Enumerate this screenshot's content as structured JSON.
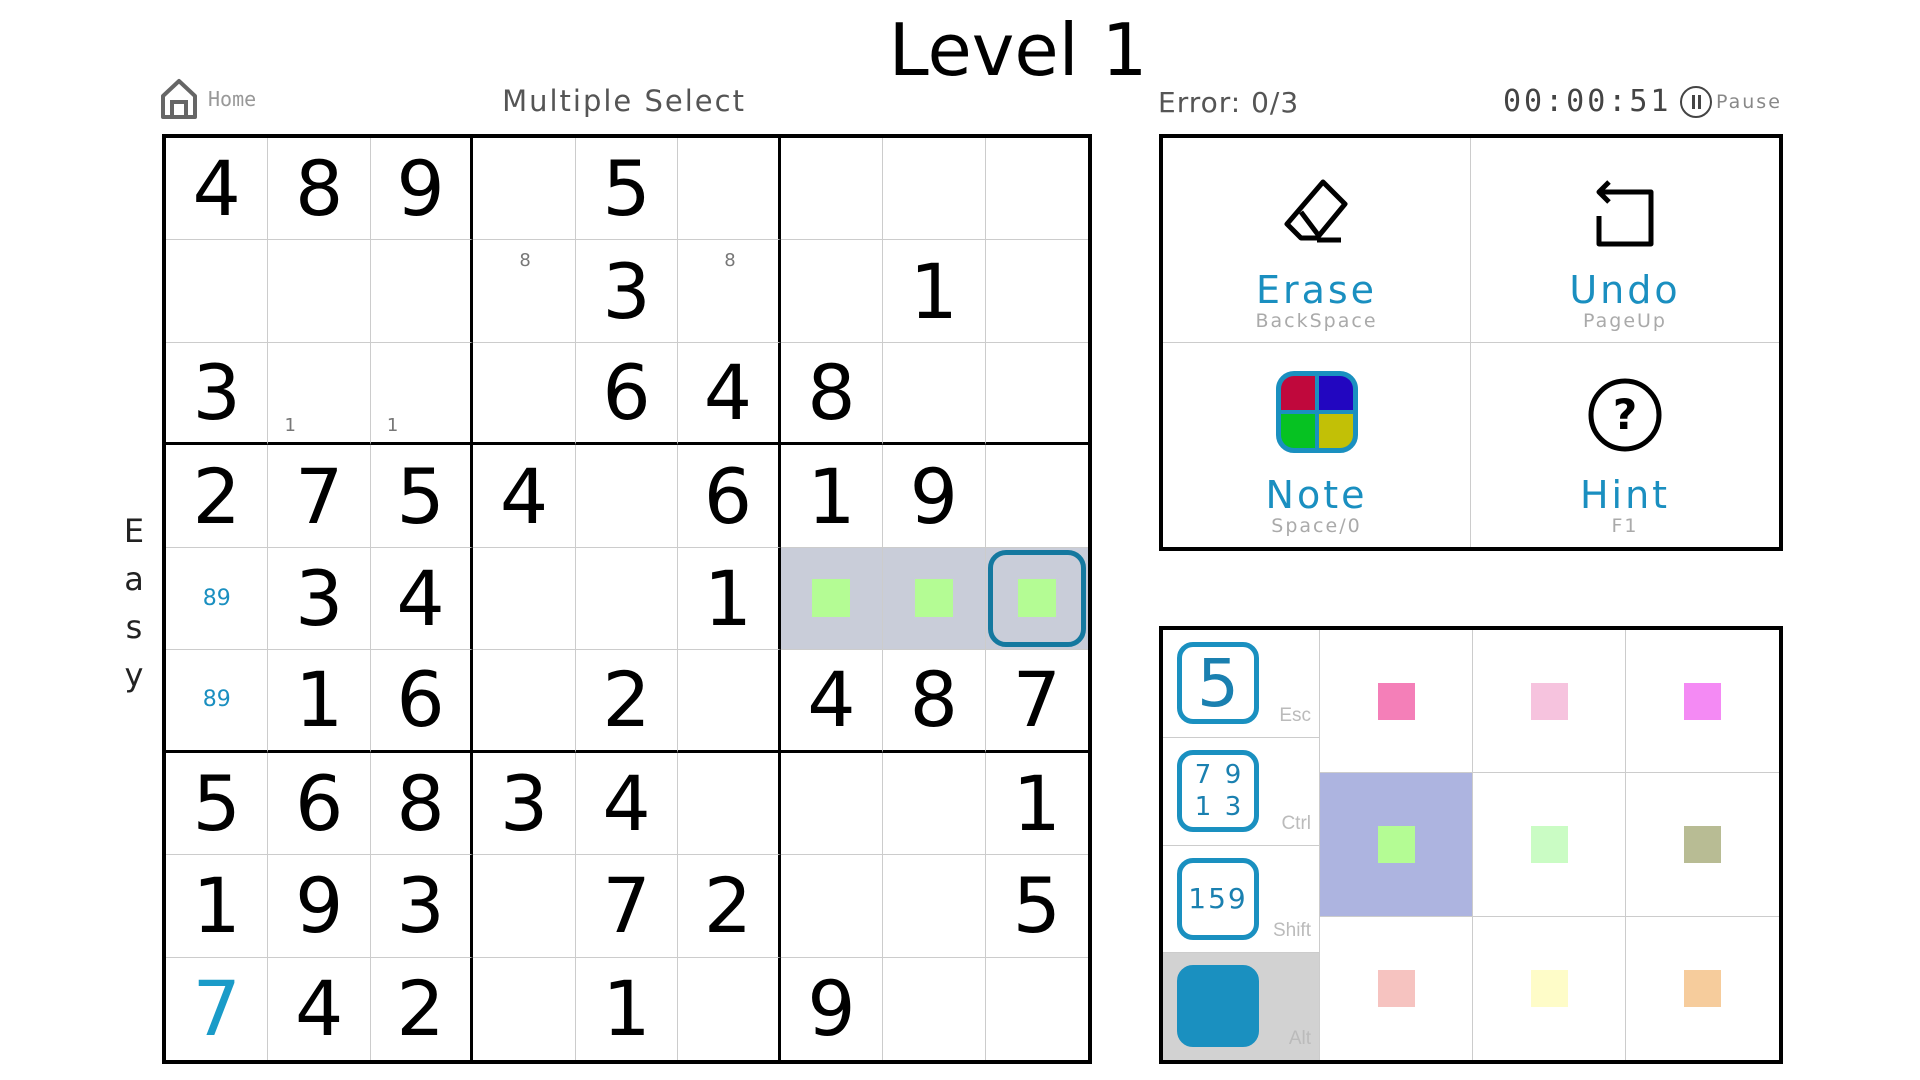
{
  "title": "Level 1",
  "home_label": "Home",
  "mode_label": "Multiple Select",
  "difficulty": "Easy",
  "error": "Error: 0/3",
  "timer": "00:00:51",
  "pause_label": "Pause",
  "colors": {
    "accent": "#1a90c0",
    "selection_border": "#14789f",
    "highlight": "#c9cdd9",
    "cell_color_fill": "#b4fc94"
  },
  "board": [
    [
      {
        "v": "4"
      },
      {
        "v": "8"
      },
      {
        "v": "9"
      },
      {},
      {
        "v": "5"
      },
      {},
      {},
      {},
      {}
    ],
    [
      {},
      {},
      {},
      {
        "note": "8",
        "pos": "tl"
      },
      {
        "v": "3"
      },
      {
        "note": "8",
        "pos": "tl"
      },
      {},
      {
        "v": "1"
      },
      {}
    ],
    [
      {
        "v": "3"
      },
      {
        "note": "1",
        "pos": "bl"
      },
      {
        "note": "1",
        "pos": "bl"
      },
      {},
      {
        "v": "6"
      },
      {
        "v": "4"
      },
      {
        "v": "8"
      },
      {},
      {}
    ],
    [
      {
        "v": "2"
      },
      {
        "v": "7"
      },
      {
        "v": "5"
      },
      {
        "v": "4"
      },
      {},
      {
        "v": "6"
      },
      {
        "v": "1"
      },
      {
        "v": "9"
      },
      {}
    ],
    [
      {
        "note": "89",
        "pos": "c"
      },
      {
        "v": "3"
      },
      {
        "v": "4"
      },
      {},
      {},
      {
        "v": "1"
      },
      {
        "color": "#b4fc94",
        "hl": true
      },
      {
        "color": "#b4fc94",
        "hl": true
      },
      {
        "color": "#b4fc94",
        "hl": true,
        "selected": true
      }
    ],
    [
      {
        "note": "89",
        "pos": "c"
      },
      {
        "v": "1"
      },
      {
        "v": "6"
      },
      {},
      {
        "v": "2"
      },
      {},
      {
        "v": "4"
      },
      {
        "v": "8"
      },
      {
        "v": "7"
      }
    ],
    [
      {
        "v": "5"
      },
      {
        "v": "6"
      },
      {
        "v": "8"
      },
      {
        "v": "3"
      },
      {
        "v": "4"
      },
      {},
      {},
      {},
      {
        "v": "1"
      }
    ],
    [
      {
        "v": "1"
      },
      {
        "v": "9"
      },
      {
        "v": "3"
      },
      {},
      {
        "v": "7"
      },
      {
        "v": "2"
      },
      {},
      {},
      {
        "v": "5"
      }
    ],
    [
      {
        "v": "7",
        "user": true
      },
      {
        "v": "4"
      },
      {
        "v": "2"
      },
      {},
      {
        "v": "1"
      },
      {},
      {
        "v": "9"
      },
      {},
      {}
    ]
  ],
  "tools": [
    {
      "label": "Erase",
      "key": "BackSpace",
      "icon": "eraser-icon"
    },
    {
      "label": "Undo",
      "key": "PageUp",
      "icon": "undo-icon"
    },
    {
      "label": "Note",
      "key": "Space/0",
      "icon": "color-note-icon"
    },
    {
      "label": "Hint",
      "key": "F1",
      "icon": "question-circle-icon"
    }
  ],
  "quad_colors": [
    "#c0083c",
    "#2206c0",
    "#06c222",
    "#c2c006"
  ],
  "input_modes": [
    {
      "key": "Esc",
      "glyph": "5",
      "icon": "single-digit-mode-icon"
    },
    {
      "key": "Ctrl",
      "glyph": [
        "7",
        "9",
        "1",
        "3"
      ],
      "icon": "corner-note-mode-icon"
    },
    {
      "key": "Shift",
      "glyph": "159",
      "icon": "center-note-mode-icon"
    },
    {
      "key": "Alt",
      "icon": "color-mode-icon",
      "active": true
    }
  ],
  "palette": [
    "#f47fb8",
    "#f6c3de",
    "#f48af4",
    "#b4fc94",
    "#cafcc4",
    "#b8bc94",
    "#f6c3c0",
    "#fefcc8",
    "#f6cc9c"
  ],
  "palette_selected": 3
}
